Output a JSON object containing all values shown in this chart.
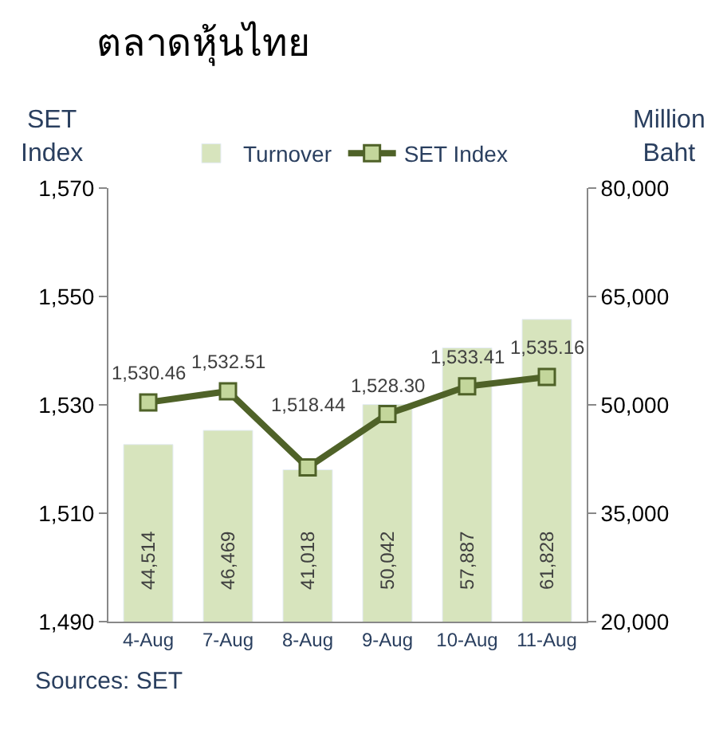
{
  "chart_data": {
    "type": "bar",
    "title": "ตลาดหุ้นไทย",
    "ylabel": "SET\nIndex",
    "y2label": "Million\nBaht",
    "categories": [
      "4-Aug",
      "7-Aug",
      "8-Aug",
      "9-Aug",
      "10-Aug",
      "11-Aug"
    ],
    "series": [
      {
        "name": "Turnover",
        "axis": "y2",
        "color": "#d7e4bd",
        "values": [
          44514,
          46469,
          41018,
          50042,
          57887,
          61828
        ],
        "value_labels": [
          "44,514",
          "46,469",
          "41,018",
          "50,042",
          "57,887",
          "61,828"
        ]
      },
      {
        "name": "SET Index",
        "type": "line",
        "color": "#4f6228",
        "marker": "square",
        "values": [
          1530.46,
          1532.51,
          1518.44,
          1528.3,
          1533.41,
          1535.16
        ],
        "value_labels": [
          "1,530.46",
          "1,532.51",
          "1,518.44",
          "1,528.30",
          "1,533.41",
          "1,535.16"
        ]
      }
    ],
    "ylim": [
      1490,
      1570
    ],
    "yticks": [
      {
        "value": 1490,
        "label": "1,490"
      },
      {
        "value": 1510,
        "label": "1,510"
      },
      {
        "value": 1530,
        "label": "1,530"
      },
      {
        "value": 1550,
        "label": "1,550"
      },
      {
        "value": 1570,
        "label": "1,570"
      }
    ],
    "y2lim": [
      20000,
      80000
    ],
    "y2ticks": [
      {
        "value": 20000,
        "label": "20,000"
      },
      {
        "value": 35000,
        "label": "35,000"
      },
      {
        "value": 50000,
        "label": "50,000"
      },
      {
        "value": 65000,
        "label": "65,000"
      },
      {
        "value": 80000,
        "label": "80,000"
      }
    ],
    "legend": "top",
    "annotations": [
      "Sources: SET"
    ]
  }
}
